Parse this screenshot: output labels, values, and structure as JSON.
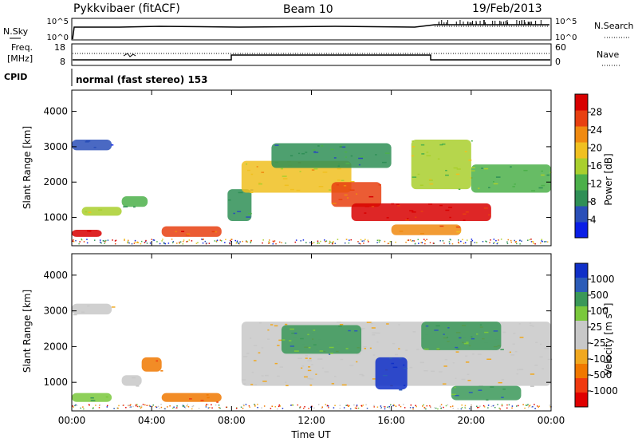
{
  "header": {
    "station": "Pykkvibaer (fitACF)",
    "beam": "Beam 10",
    "date": "19/Feb/2013"
  },
  "strip": {
    "nsky_label": "N.Sky",
    "nsky_ticks": [
      "10^5",
      "10^0"
    ],
    "nsearch_label": "N.Search",
    "nsearch_ticks": [
      "10^5",
      "10^0"
    ],
    "freq_label_1": "Freq.",
    "freq_label_2": "[MHz]",
    "freq_ticks": [
      "18",
      "8"
    ],
    "nave_label": "Nave",
    "nave_ticks": [
      "60",
      "0"
    ],
    "cpid_label": "CPID",
    "cpid_text": "normal (fast stereo) 153"
  },
  "colors": {
    "power": [
      "#0a1ee6",
      "#2a4fb8",
      "#2f8f56",
      "#4cb04a",
      "#a9cf2d",
      "#f0c020",
      "#f08a10",
      "#e84010",
      "#d80000"
    ],
    "velocity": [
      "#e00000",
      "#f03a10",
      "#f07800",
      "#f0a820",
      "#c8c8c8",
      "#c8c8c8",
      "#7ac83c",
      "#3a9858",
      "#2c5cb8",
      "#1030c8"
    ]
  },
  "chart_data": [
    {
      "type": "heatmap",
      "ylabel": "Slant Range [km]",
      "y_ticks": [
        "1000",
        "2000",
        "3000",
        "4000"
      ],
      "ylim": [
        200,
        4600
      ],
      "colorbar_label": "Power [dB]",
      "colorbar_ticks": [
        "4",
        "8",
        "12",
        "16",
        "20",
        "24",
        "28"
      ],
      "features": [
        {
          "t0": 0.0,
          "t1": 1.5,
          "r0": 450,
          "r1": 650,
          "level": 8
        },
        {
          "t0": 0.5,
          "t1": 2.5,
          "r0": 1050,
          "r1": 1300,
          "level": 4
        },
        {
          "t0": 2.5,
          "t1": 3.8,
          "r0": 1300,
          "r1": 1600,
          "level": 3
        },
        {
          "t0": 0.0,
          "t1": 2.0,
          "r0": 2900,
          "r1": 3200,
          "level": 1
        },
        {
          "t0": 4.5,
          "t1": 7.5,
          "r0": 450,
          "r1": 750,
          "level": 7
        },
        {
          "t0": 7.8,
          "t1": 9.0,
          "r0": 900,
          "r1": 1800,
          "level": 2
        },
        {
          "t0": 8.5,
          "t1": 14.0,
          "r0": 1700,
          "r1": 2600,
          "level": 5
        },
        {
          "t0": 10.0,
          "t1": 16.0,
          "r0": 2400,
          "r1": 3100,
          "level": 2
        },
        {
          "t0": 13.0,
          "t1": 15.5,
          "r0": 1300,
          "r1": 2000,
          "level": 7
        },
        {
          "t0": 14.0,
          "t1": 21.0,
          "r0": 900,
          "r1": 1400,
          "level": 8
        },
        {
          "t0": 17.0,
          "t1": 20.0,
          "r0": 1800,
          "r1": 3200,
          "level": 4
        },
        {
          "t0": 20.0,
          "t1": 24.0,
          "r0": 1700,
          "r1": 2500,
          "level": 3
        },
        {
          "t0": 16.0,
          "t1": 19.5,
          "r0": 500,
          "r1": 800,
          "level": 6
        }
      ]
    },
    {
      "type": "heatmap",
      "ylabel": "Slant Range [km]",
      "xlabel": "Time UT",
      "x_ticks": [
        "00:00",
        "04:00",
        "08:00",
        "12:00",
        "16:00",
        "20:00",
        "00:00"
      ],
      "y_ticks": [
        "1000",
        "2000",
        "3000",
        "4000"
      ],
      "ylim": [
        200,
        4600
      ],
      "colorbar_label": "Velocity [m s",
      "colorbar_label_sup": "-1",
      "colorbar_label_end": "]",
      "colorbar_ticks": [
        "1000",
        "500",
        "100",
        "25",
        "-25",
        "-100",
        "-500",
        "-1000"
      ],
      "features": [
        {
          "t0": 0.0,
          "t1": 2.0,
          "r0": 450,
          "r1": 700,
          "level": 6
        },
        {
          "t0": 2.5,
          "t1": 3.5,
          "r0": 900,
          "r1": 1200,
          "level": 4
        },
        {
          "t0": 3.5,
          "t1": 4.5,
          "r0": 1300,
          "r1": 1700,
          "level": 2
        },
        {
          "t0": 4.5,
          "t1": 7.5,
          "r0": 450,
          "r1": 700,
          "level": 2
        },
        {
          "t0": 8.5,
          "t1": 24.0,
          "r0": 900,
          "r1": 2700,
          "level": 4
        },
        {
          "t0": 10.5,
          "t1": 14.5,
          "r0": 1800,
          "r1": 2600,
          "level": 7
        },
        {
          "t0": 15.2,
          "t1": 16.8,
          "r0": 800,
          "r1": 1700,
          "level": 9
        },
        {
          "t0": 17.5,
          "t1": 21.5,
          "r0": 1900,
          "r1": 2700,
          "level": 7
        },
        {
          "t0": 19.0,
          "t1": 22.5,
          "r0": 500,
          "r1": 900,
          "level": 7
        },
        {
          "t0": 0.0,
          "t1": 2.0,
          "r0": 2900,
          "r1": 3200,
          "level": 4
        }
      ]
    }
  ]
}
